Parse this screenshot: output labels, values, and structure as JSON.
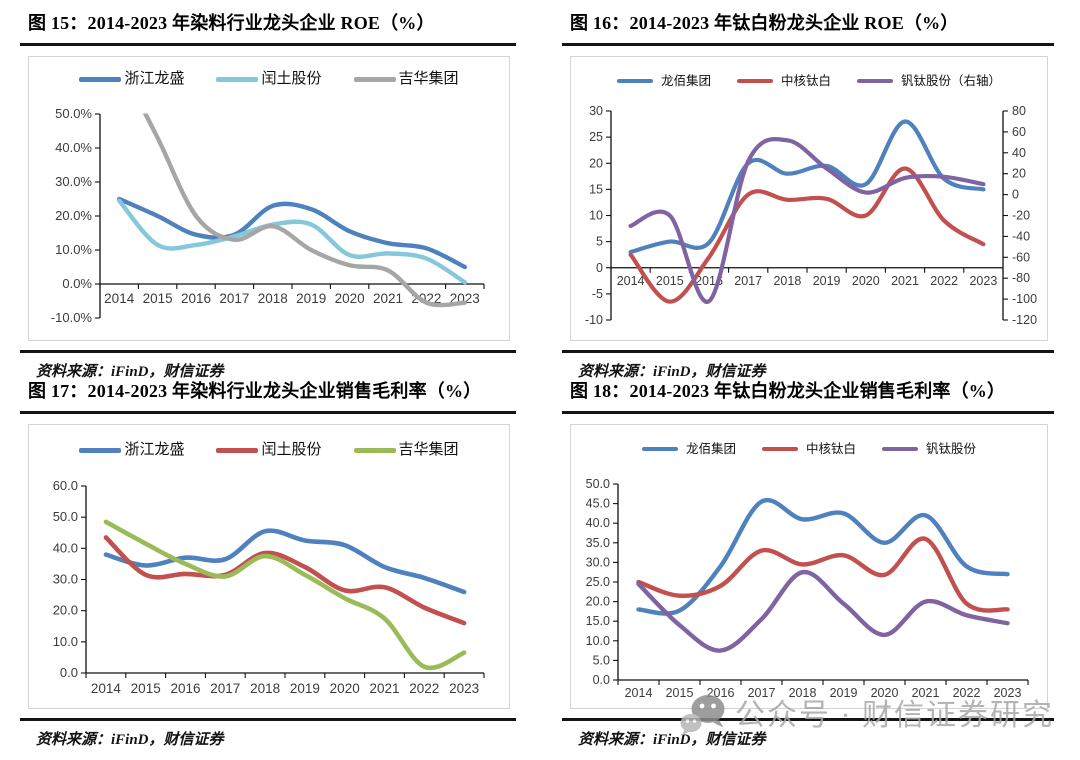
{
  "watermark": {
    "text": "公众号 · 财信证券研究",
    "color": "#a7a7a7",
    "icon": "wechat-icon"
  },
  "source_label": "资料来源：iFinD，财信证券",
  "palette": {
    "blue": "#4E81BD",
    "cyan": "#85C7DB",
    "gray": "#A6A6A6",
    "red": "#C1504E",
    "green": "#9BBB59",
    "purple": "#8064A2"
  },
  "chart_data": [
    {
      "figure_label": "图 15",
      "title": "图 15：2014-2023 年染料行业龙头企业 ROE（%）",
      "source": "资料来源：iFinD，财信证券",
      "type": "line",
      "categories": [
        "2014",
        "2015",
        "2016",
        "2017",
        "2018",
        "2019",
        "2020",
        "2021",
        "2022",
        "2023"
      ],
      "y_left": {
        "min": -10,
        "max": 50,
        "x_axis_at": 0,
        "ticks": [
          {
            "v": 50,
            "label": "50.0%"
          },
          {
            "v": 40,
            "label": "40.0%"
          },
          {
            "v": 30,
            "label": "30.0%"
          },
          {
            "v": 20,
            "label": "20.0%"
          },
          {
            "v": 10,
            "label": "10.0%"
          },
          {
            "v": 0,
            "label": "0.0%"
          },
          {
            "v": -10,
            "label": "-10.0%"
          }
        ]
      },
      "series": [
        {
          "name": "浙江龙盛",
          "legend": "浙江龙盛",
          "color": "#4E81BD",
          "axis": "left",
          "values": [
            25,
            20,
            14.5,
            14.5,
            23,
            22,
            15.5,
            12,
            10.5,
            5
          ]
        },
        {
          "name": "闰土股份",
          "legend": "闰土股份",
          "color": "#85C7DB",
          "axis": "left",
          "values": [
            24.5,
            11.5,
            11.5,
            14,
            17.5,
            17.5,
            8.5,
            9,
            7.5,
            0.5
          ]
        },
        {
          "name": "吉华集团",
          "legend": "吉华集团",
          "color": "#A6A6A6",
          "axis": "left",
          "values": [
            65,
            43,
            20,
            13,
            17,
            10,
            5.5,
            4,
            -5.5,
            -5.5
          ],
          "note": "2014 value exceeds axis maximum; line is clipped at 50.0%"
        }
      ]
    },
    {
      "figure_label": "图 16",
      "title": "图 16：2014-2023 年钛白粉龙头企业 ROE（%）",
      "source": "资料来源：iFinD，财信证券",
      "type": "line",
      "categories": [
        "2014",
        "2015",
        "2016",
        "2017",
        "2018",
        "2019",
        "2020",
        "2021",
        "2022",
        "2023"
      ],
      "y_left": {
        "min": -10,
        "max": 30,
        "x_axis_at": 0,
        "ticks": [
          {
            "v": 30,
            "label": "30"
          },
          {
            "v": 25,
            "label": "25"
          },
          {
            "v": 20,
            "label": "20"
          },
          {
            "v": 15,
            "label": "15"
          },
          {
            "v": 10,
            "label": "10"
          },
          {
            "v": 5,
            "label": "5"
          },
          {
            "v": 0,
            "label": "0"
          },
          {
            "v": -5,
            "label": "-5"
          },
          {
            "v": -10,
            "label": "-10"
          }
        ]
      },
      "y_right": {
        "min": -120,
        "max": 80,
        "ticks": [
          {
            "v": 80,
            "label": "80"
          },
          {
            "v": 60,
            "label": "60"
          },
          {
            "v": 40,
            "label": "40"
          },
          {
            "v": 20,
            "label": "20"
          },
          {
            "v": 0,
            "label": "0"
          },
          {
            "v": -20,
            "label": "-20"
          },
          {
            "v": -40,
            "label": "-40"
          },
          {
            "v": -60,
            "label": "-60"
          },
          {
            "v": -80,
            "label": "-80"
          },
          {
            "v": -100,
            "label": "-100"
          },
          {
            "v": -120,
            "label": "-120"
          }
        ]
      },
      "series": [
        {
          "name": "龙佰集团",
          "legend": "龙佰集团",
          "color": "#4E81BD",
          "axis": "left",
          "values": [
            3,
            5,
            4.8,
            20,
            18,
            19.5,
            16,
            28,
            17,
            15
          ]
        },
        {
          "name": "中核钛白",
          "legend": "中核钛白",
          "color": "#C1504E",
          "axis": "left",
          "values": [
            2.5,
            -6.5,
            2,
            14,
            13,
            13.2,
            10,
            19,
            9,
            4.5
          ]
        },
        {
          "name": "钒钛股份",
          "legend": "钒钛股份（右轴）",
          "color": "#8064A2",
          "axis": "right",
          "values": [
            -30,
            -20,
            -102,
            32,
            52,
            25,
            2,
            16,
            17,
            10
          ]
        }
      ]
    },
    {
      "figure_label": "图 17",
      "title": "图 17：2014-2023 年染料行业龙头企业销售毛利率（%）",
      "source": "资料来源：iFinD，财信证券",
      "type": "line",
      "categories": [
        "2014",
        "2015",
        "2016",
        "2017",
        "2018",
        "2019",
        "2020",
        "2021",
        "2022",
        "2023"
      ],
      "y_left": {
        "min": 0,
        "max": 60,
        "x_axis_at": 0,
        "ticks": [
          {
            "v": 60,
            "label": "60.0"
          },
          {
            "v": 50,
            "label": "50.0"
          },
          {
            "v": 40,
            "label": "40.0"
          },
          {
            "v": 30,
            "label": "30.0"
          },
          {
            "v": 20,
            "label": "20.0"
          },
          {
            "v": 10,
            "label": "10.0"
          },
          {
            "v": 0,
            "label": "0.0"
          }
        ]
      },
      "series": [
        {
          "name": "浙江龙盛",
          "legend": "浙江龙盛",
          "color": "#4E81BD",
          "axis": "left",
          "values": [
            38,
            34.5,
            37,
            36.5,
            45.5,
            42.5,
            41,
            34,
            30.5,
            26
          ]
        },
        {
          "name": "闰土股份",
          "legend": "闰土股份",
          "color": "#C1504E",
          "axis": "left",
          "values": [
            43.5,
            31.5,
            31.8,
            31.5,
            38.5,
            34,
            26.5,
            27.5,
            21,
            16
          ]
        },
        {
          "name": "吉华集团",
          "legend": "吉华集团",
          "color": "#9BBB59",
          "axis": "left",
          "values": [
            48.5,
            41.5,
            35,
            31,
            37.5,
            31.5,
            24,
            17.5,
            2,
            6.5
          ]
        }
      ]
    },
    {
      "figure_label": "图 18",
      "title": "图 18：2014-2023 年钛白粉龙头企业销售毛利率（%）",
      "source": "资料来源：iFinD，财信证券",
      "type": "line",
      "categories": [
        "2014",
        "2015",
        "2016",
        "2017",
        "2018",
        "2019",
        "2020",
        "2021",
        "2022",
        "2023"
      ],
      "y_left": {
        "min": 0,
        "max": 50,
        "x_axis_at": 0,
        "ticks": [
          {
            "v": 50,
            "label": "50.0"
          },
          {
            "v": 45,
            "label": "45.0"
          },
          {
            "v": 40,
            "label": "40.0"
          },
          {
            "v": 35,
            "label": "35.0"
          },
          {
            "v": 30,
            "label": "30.0"
          },
          {
            "v": 25,
            "label": "25.0"
          },
          {
            "v": 20,
            "label": "20.0"
          },
          {
            "v": 15,
            "label": "15.0"
          },
          {
            "v": 10,
            "label": "10.0"
          },
          {
            "v": 5,
            "label": "5.0"
          },
          {
            "v": 0,
            "label": "0.0"
          }
        ]
      },
      "series": [
        {
          "name": "龙佰集团",
          "legend": "龙佰集团",
          "color": "#4E81BD",
          "axis": "left",
          "values": [
            18,
            17.7,
            29,
            45.5,
            41,
            42.5,
            35,
            42,
            29,
            27
          ]
        },
        {
          "name": "中核钛白",
          "legend": "中核钛白",
          "color": "#C1504E",
          "axis": "left",
          "values": [
            25,
            21.5,
            24,
            33,
            29.5,
            31.8,
            26.8,
            36,
            19.5,
            18
          ]
        },
        {
          "name": "钒钛股份",
          "legend": "钒钛股份",
          "color": "#8064A2",
          "axis": "left",
          "values": [
            24.5,
            14,
            7.5,
            15.5,
            27.5,
            19.5,
            11.5,
            20,
            16.5,
            14.5
          ]
        }
      ]
    }
  ]
}
